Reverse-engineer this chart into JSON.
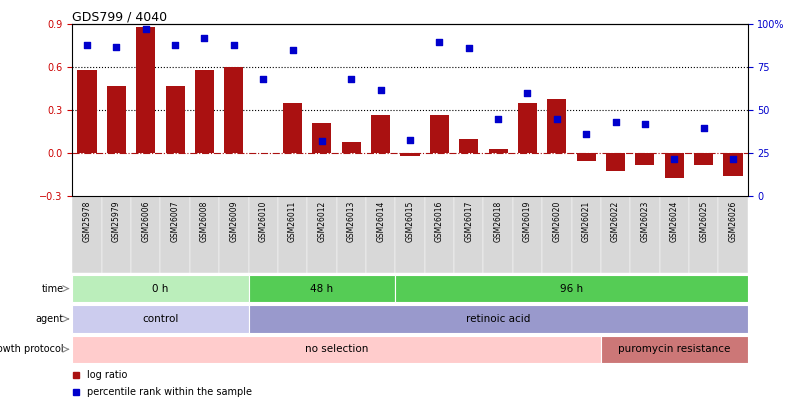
{
  "title": "GDS799 / 4040",
  "samples": [
    "GSM25978",
    "GSM25979",
    "GSM26006",
    "GSM26007",
    "GSM26008",
    "GSM26009",
    "GSM26010",
    "GSM26011",
    "GSM26012",
    "GSM26013",
    "GSM26014",
    "GSM26015",
    "GSM26016",
    "GSM26017",
    "GSM26018",
    "GSM26019",
    "GSM26020",
    "GSM26021",
    "GSM26022",
    "GSM26023",
    "GSM26024",
    "GSM26025",
    "GSM26026"
  ],
  "log_ratio": [
    0.58,
    0.47,
    0.88,
    0.47,
    0.58,
    0.6,
    0.0,
    0.35,
    0.21,
    0.08,
    0.27,
    -0.02,
    0.27,
    0.1,
    0.03,
    0.35,
    0.38,
    -0.05,
    -0.12,
    -0.08,
    -0.17,
    -0.08,
    -0.16
  ],
  "percentile": [
    88,
    87,
    97,
    88,
    92,
    88,
    68,
    85,
    32,
    68,
    62,
    33,
    90,
    86,
    45,
    60,
    45,
    36,
    43,
    42,
    22,
    40,
    22
  ],
  "bar_color": "#aa1111",
  "dot_color": "#0000cc",
  "ylim_left": [
    -0.3,
    0.9
  ],
  "ylim_right": [
    0,
    100
  ],
  "yticks_left": [
    -0.3,
    0.0,
    0.3,
    0.6,
    0.9
  ],
  "yticks_right": [
    0,
    25,
    50,
    75,
    100
  ],
  "hlines": [
    0.3,
    0.6
  ],
  "bg_color": "#ffffff",
  "axes_label_color_left": "#cc0000",
  "axes_label_color_right": "#0000cc",
  "time_groups": [
    {
      "label": "0 h",
      "start": 0,
      "end": 6,
      "color": "#bbeebb"
    },
    {
      "label": "48 h",
      "start": 6,
      "end": 11,
      "color": "#55cc55"
    },
    {
      "label": "96 h",
      "start": 11,
      "end": 23,
      "color": "#55cc55"
    }
  ],
  "agent_groups": [
    {
      "label": "control",
      "start": 0,
      "end": 6,
      "color": "#ccccee"
    },
    {
      "label": "retinoic acid",
      "start": 6,
      "end": 23,
      "color": "#9999cc"
    }
  ],
  "growth_groups": [
    {
      "label": "no selection",
      "start": 0,
      "end": 18,
      "color": "#ffcccc"
    },
    {
      "label": "puromycin resistance",
      "start": 18,
      "end": 23,
      "color": "#cc7777"
    }
  ],
  "row_labels": [
    "time",
    "agent",
    "growth protocol"
  ],
  "legend_items": [
    {
      "color": "#aa1111",
      "marker": "s",
      "label": "log ratio"
    },
    {
      "color": "#0000cc",
      "marker": "s",
      "label": "percentile rank within the sample"
    }
  ]
}
